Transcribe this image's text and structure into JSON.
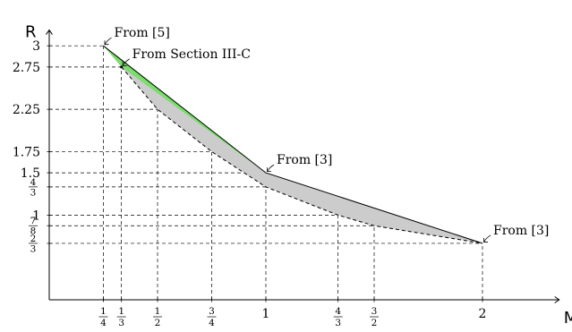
{
  "chart_data": {
    "type": "line",
    "xlabel": "M",
    "ylabel": "R",
    "xlim": [
      0,
      2.35
    ],
    "ylim": [
      0,
      3.25
    ],
    "x_ticks": [
      {
        "value": 0.25,
        "num": "1",
        "den": "4"
      },
      {
        "value": 0.3333,
        "num": "1",
        "den": "3"
      },
      {
        "value": 0.5,
        "num": "1",
        "den": "2"
      },
      {
        "value": 0.75,
        "num": "3",
        "den": "4"
      },
      {
        "value": 1,
        "label": "1"
      },
      {
        "value": 1.3333,
        "num": "4",
        "den": "3"
      },
      {
        "value": 1.5,
        "num": "3",
        "den": "2"
      },
      {
        "value": 2,
        "label": "2"
      }
    ],
    "y_ticks": [
      {
        "value": 3,
        "label": "3"
      },
      {
        "value": 2.75,
        "label": "2.75"
      },
      {
        "value": 2.25,
        "label": "2.25"
      },
      {
        "value": 1.75,
        "label": "1.75"
      },
      {
        "value": 1.5,
        "label": "1.5"
      },
      {
        "value": 1.3333,
        "num": "4",
        "den": "3"
      },
      {
        "value": 1,
        "label": "1"
      },
      {
        "value": 0.875,
        "num": "7",
        "den": "8"
      },
      {
        "value": 0.6667,
        "num": "2",
        "den": "3"
      }
    ],
    "upper_bound": [
      [
        0.25,
        3
      ],
      [
        1,
        1.5
      ],
      [
        2,
        0.6667
      ]
    ],
    "section_point": [
      [
        0.3333,
        2.75
      ]
    ],
    "lower_curve": [
      [
        0.3333,
        2.75
      ],
      [
        0.5,
        2.25
      ],
      [
        0.75,
        1.75
      ],
      [
        1,
        1.3333
      ],
      [
        1.3333,
        1
      ],
      [
        1.5,
        0.875
      ],
      [
        2,
        0.6667
      ]
    ],
    "green_region": [
      [
        0.25,
        3
      ],
      [
        0.3333,
        2.75
      ],
      [
        1,
        1.5
      ]
    ],
    "gray_region": [
      [
        0.3333,
        2.75
      ],
      [
        1,
        1.5
      ],
      [
        2,
        0.6667
      ],
      [
        1.5,
        0.875
      ],
      [
        1.3333,
        1
      ],
      [
        1,
        1.3333
      ],
      [
        0.75,
        1.75
      ],
      [
        0.5,
        2.25
      ]
    ],
    "annotations": [
      {
        "text": "From [5]",
        "x": 0.25,
        "y": 3
      },
      {
        "text": "From Section III-C",
        "x": 0.3333,
        "y": 2.75
      },
      {
        "text": "From [3]",
        "x": 1,
        "y": 1.5
      },
      {
        "text": "From [3]",
        "x": 2,
        "y": 0.6667
      }
    ],
    "colors": {
      "green_region": "#7ddc6e",
      "gray_region": "#cccccc",
      "lines": "#000000"
    }
  }
}
